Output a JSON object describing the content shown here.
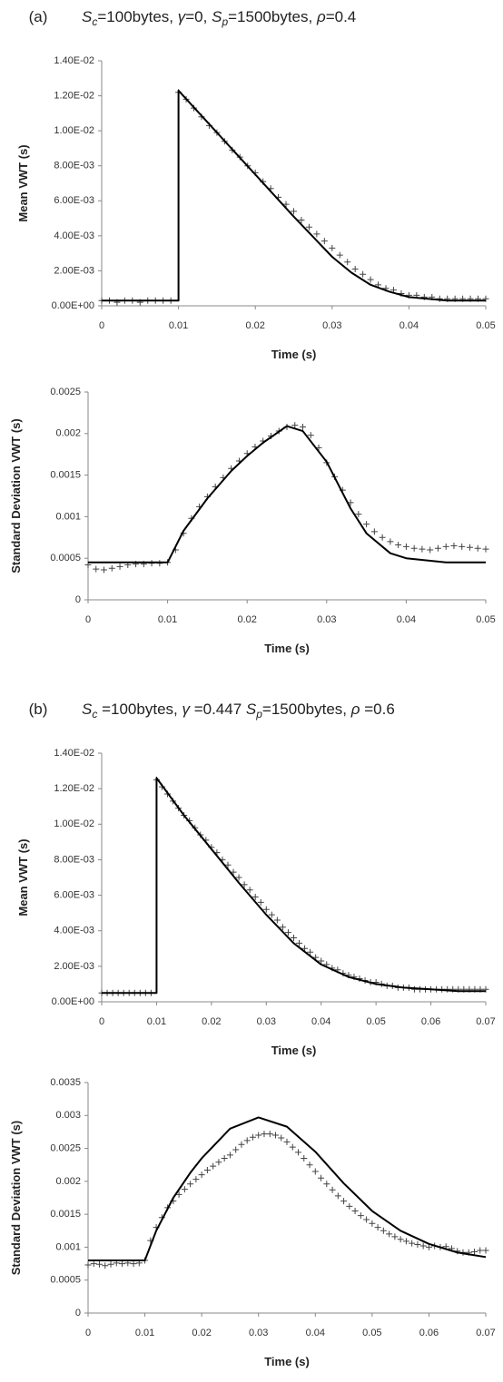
{
  "headings": [
    [
      "(a)",
      "S",
      "c",
      "=100bytes, ",
      "γ",
      "=0, ",
      "S",
      "p",
      "=1500bytes, ",
      "ρ",
      "=0.4"
    ],
    [
      "(b)",
      "S",
      "c",
      " =100bytes, ",
      "γ",
      " =0.447 ",
      "S",
      "p",
      "=1500bytes, ",
      "ρ",
      " =0.6"
    ]
  ],
  "chart_data": [
    {
      "type": "line",
      "y_label": "Mean VWT (s)",
      "x_label": "Time (s)",
      "xlim": [
        0,
        0.05
      ],
      "xticks": [
        0,
        0.01,
        0.02,
        0.03,
        0.04,
        0.05
      ],
      "ylim": [
        0,
        0.014
      ],
      "yticks": [
        {
          "value": 0,
          "label": "0.00E+00"
        },
        {
          "value": 0.002,
          "label": "2.00E-03"
        },
        {
          "value": 0.004,
          "label": "4.00E-03"
        },
        {
          "value": 0.006,
          "label": "6.00E-03"
        },
        {
          "value": 0.008,
          "label": "8.00E-03"
        },
        {
          "value": 0.01,
          "label": "1.00E-02"
        },
        {
          "value": 0.012,
          "label": "1.20E-02"
        },
        {
          "value": 0.014,
          "label": "1.40E-02"
        }
      ],
      "series": [
        {
          "color": "#444444",
          "marker": "+",
          "x": [
            0,
            0.001,
            0.002,
            0.003,
            0.004,
            0.005,
            0.006,
            0.007,
            0.008,
            0.009,
            0.01,
            0.011,
            0.012,
            0.013,
            0.014,
            0.015,
            0.016,
            0.017,
            0.018,
            0.019,
            0.02,
            0.021,
            0.022,
            0.023,
            0.024,
            0.025,
            0.026,
            0.027,
            0.028,
            0.029,
            0.03,
            0.031,
            0.032,
            0.033,
            0.034,
            0.035,
            0.036,
            0.037,
            0.038,
            0.039,
            0.04,
            0.041,
            0.042,
            0.043,
            0.044,
            0.045,
            0.046,
            0.047,
            0.048,
            0.049,
            0.05
          ],
          "values": [
            0.0003,
            0.0003,
            0.0002,
            0.0003,
            0.0003,
            0.0002,
            0.0003,
            0.0003,
            0.0003,
            0.0003,
            0.0122,
            0.0118,
            0.0113,
            0.0108,
            0.0103,
            0.0099,
            0.0094,
            0.0089,
            0.0085,
            0.008,
            0.0076,
            0.0071,
            0.0067,
            0.0062,
            0.0058,
            0.0054,
            0.0049,
            0.0045,
            0.0041,
            0.0037,
            0.0033,
            0.0029,
            0.0025,
            0.0021,
            0.0018,
            0.0015,
            0.0012,
            0.001,
            0.0009,
            0.0007,
            0.0006,
            0.0006,
            0.0005,
            0.0005,
            0.0004,
            0.0004,
            0.0004,
            0.0004,
            0.0004,
            0.0004,
            0.0004
          ]
        },
        {
          "color": "#000000",
          "x": [
            0,
            0.01,
            0.01,
            0.015,
            0.02,
            0.025,
            0.03,
            0.0325,
            0.035,
            0.0375,
            0.04,
            0.045,
            0.05
          ],
          "values": [
            0.0003,
            0.0003,
            0.0123,
            0.0099,
            0.0075,
            0.0051,
            0.0028,
            0.0019,
            0.0012,
            0.0008,
            0.0005,
            0.0003,
            0.0003
          ]
        }
      ]
    },
    {
      "type": "line",
      "y_label": "Standard Deviation VWT (s)",
      "x_label": "Time (s)",
      "xlim": [
        0,
        0.05
      ],
      "xticks": [
        0,
        0.01,
        0.02,
        0.03,
        0.04,
        0.05
      ],
      "ylim": [
        0,
        0.0025
      ],
      "yticks": [
        0,
        0.0005,
        0.001,
        0.0015,
        0.002,
        0.0025
      ],
      "series": [
        {
          "color": "#444444",
          "marker": "+",
          "x": [
            0,
            0.001,
            0.002,
            0.003,
            0.004,
            0.005,
            0.006,
            0.007,
            0.008,
            0.009,
            0.01,
            0.011,
            0.012,
            0.013,
            0.014,
            0.015,
            0.016,
            0.017,
            0.018,
            0.019,
            0.02,
            0.021,
            0.022,
            0.023,
            0.024,
            0.025,
            0.026,
            0.027,
            0.028,
            0.029,
            0.03,
            0.031,
            0.032,
            0.033,
            0.034,
            0.035,
            0.036,
            0.037,
            0.038,
            0.039,
            0.04,
            0.041,
            0.042,
            0.043,
            0.044,
            0.045,
            0.046,
            0.047,
            0.048,
            0.049,
            0.05
          ],
          "values": [
            0.00042,
            0.00037,
            0.00036,
            0.00038,
            0.0004,
            0.00042,
            0.00043,
            0.00043,
            0.00044,
            0.00044,
            0.00045,
            0.0006,
            0.0008,
            0.00098,
            0.00112,
            0.00124,
            0.00136,
            0.00147,
            0.00158,
            0.00167,
            0.00176,
            0.00184,
            0.00191,
            0.00197,
            0.00203,
            0.00208,
            0.0021,
            0.00208,
            0.00198,
            0.00183,
            0.00165,
            0.00148,
            0.00132,
            0.00117,
            0.00103,
            0.00091,
            0.00082,
            0.00075,
            0.0007,
            0.00066,
            0.00064,
            0.00062,
            0.00061,
            0.0006,
            0.00062,
            0.00064,
            0.00065,
            0.00064,
            0.00063,
            0.00062,
            0.00061
          ]
        },
        {
          "color": "#000000",
          "x": [
            0,
            0.01,
            0.012,
            0.015,
            0.018,
            0.02,
            0.022,
            0.025,
            0.027,
            0.03,
            0.033,
            0.035,
            0.038,
            0.04,
            0.045,
            0.05
          ],
          "values": [
            0.00045,
            0.00045,
            0.00083,
            0.00122,
            0.00155,
            0.00173,
            0.00189,
            0.00209,
            0.00203,
            0.00166,
            0.0011,
            0.0008,
            0.00056,
            0.0005,
            0.00045,
            0.00045
          ]
        }
      ]
    },
    {
      "type": "line",
      "y_label": "Mean VWT (s)",
      "x_label": "Time (s)",
      "xlim": [
        0,
        0.07
      ],
      "xticks": [
        0,
        0.01,
        0.02,
        0.03,
        0.04,
        0.05,
        0.06,
        0.07
      ],
      "ylim": [
        0,
        0.014
      ],
      "yticks": [
        {
          "value": 0,
          "label": "0.00E+00"
        },
        {
          "value": 0.002,
          "label": "2.00E-03"
        },
        {
          "value": 0.004,
          "label": "4.00E-03"
        },
        {
          "value": 0.006,
          "label": "6.00E-03"
        },
        {
          "value": 0.008,
          "label": "8.00E-03"
        },
        {
          "value": 0.01,
          "label": "1.00E-02"
        },
        {
          "value": 0.012,
          "label": "1.20E-02"
        },
        {
          "value": 0.014,
          "label": "1.40E-02"
        }
      ],
      "series": [
        {
          "color": "#444444",
          "marker": "+",
          "x": [
            0,
            0.001,
            0.002,
            0.003,
            0.004,
            0.005,
            0.006,
            0.007,
            0.008,
            0.009,
            0.01,
            0.011,
            0.012,
            0.013,
            0.014,
            0.015,
            0.016,
            0.017,
            0.018,
            0.019,
            0.02,
            0.021,
            0.022,
            0.023,
            0.024,
            0.025,
            0.026,
            0.027,
            0.028,
            0.029,
            0.03,
            0.031,
            0.032,
            0.033,
            0.034,
            0.035,
            0.036,
            0.037,
            0.038,
            0.039,
            0.04,
            0.041,
            0.042,
            0.043,
            0.044,
            0.045,
            0.046,
            0.047,
            0.048,
            0.049,
            0.05,
            0.051,
            0.052,
            0.053,
            0.054,
            0.055,
            0.056,
            0.057,
            0.058,
            0.059,
            0.06,
            0.061,
            0.062,
            0.063,
            0.064,
            0.065,
            0.066,
            0.067,
            0.068,
            0.069,
            0.07
          ],
          "values": [
            0.0005,
            0.0005,
            0.0005,
            0.0005,
            0.0005,
            0.0005,
            0.0005,
            0.0005,
            0.0005,
            0.0005,
            0.0125,
            0.0121,
            0.0117,
            0.0113,
            0.0109,
            0.0105,
            0.0102,
            0.0098,
            0.0094,
            0.0091,
            0.0087,
            0.0084,
            0.008,
            0.0077,
            0.0073,
            0.007,
            0.0066,
            0.0063,
            0.0059,
            0.0056,
            0.0052,
            0.0049,
            0.0046,
            0.0042,
            0.0039,
            0.0036,
            0.0033,
            0.003,
            0.0028,
            0.0025,
            0.0023,
            0.0021,
            0.0019,
            0.0018,
            0.0016,
            0.0015,
            0.0014,
            0.0013,
            0.0012,
            0.0011,
            0.0011,
            0.001,
            0.0009,
            0.0009,
            0.0008,
            0.0008,
            0.0008,
            0.0007,
            0.0007,
            0.0007,
            0.0007,
            0.0007,
            0.0007,
            0.0007,
            0.0007,
            0.0007,
            0.0007,
            0.0007,
            0.0007,
            0.0007,
            0.0007
          ]
        },
        {
          "color": "#000000",
          "x": [
            0,
            0.01,
            0.01,
            0.015,
            0.02,
            0.025,
            0.03,
            0.035,
            0.04,
            0.045,
            0.05,
            0.055,
            0.06,
            0.065,
            0.07
          ],
          "values": [
            0.0005,
            0.0005,
            0.0126,
            0.0105,
            0.0086,
            0.0067,
            0.0049,
            0.0033,
            0.0021,
            0.0014,
            0.001,
            0.0008,
            0.0007,
            0.0006,
            0.0006
          ]
        }
      ]
    },
    {
      "type": "line",
      "y_label": "Standard Deviation VWT (s)",
      "x_label": "Time (s)",
      "xlim": [
        0,
        0.07
      ],
      "xticks": [
        0,
        0.01,
        0.02,
        0.03,
        0.04,
        0.05,
        0.06,
        0.07
      ],
      "ylim": [
        0,
        0.0035
      ],
      "yticks": [
        0,
        0.0005,
        0.001,
        0.0015,
        0.002,
        0.0025,
        0.003,
        0.0035
      ],
      "series": [
        {
          "color": "#444444",
          "marker": "+",
          "x": [
            0,
            0.001,
            0.002,
            0.003,
            0.004,
            0.005,
            0.006,
            0.007,
            0.008,
            0.009,
            0.01,
            0.011,
            0.012,
            0.013,
            0.014,
            0.015,
            0.016,
            0.017,
            0.018,
            0.019,
            0.02,
            0.021,
            0.022,
            0.023,
            0.024,
            0.025,
            0.026,
            0.027,
            0.028,
            0.029,
            0.03,
            0.031,
            0.032,
            0.033,
            0.034,
            0.035,
            0.036,
            0.037,
            0.038,
            0.039,
            0.04,
            0.041,
            0.042,
            0.043,
            0.044,
            0.045,
            0.046,
            0.047,
            0.048,
            0.049,
            0.05,
            0.051,
            0.052,
            0.053,
            0.054,
            0.055,
            0.056,
            0.057,
            0.058,
            0.059,
            0.06,
            0.061,
            0.062,
            0.063,
            0.064,
            0.065,
            0.066,
            0.067,
            0.068,
            0.069,
            0.07
          ],
          "values": [
            0.00073,
            0.00075,
            0.00074,
            0.00072,
            0.00074,
            0.00076,
            0.00075,
            0.00076,
            0.00075,
            0.00076,
            0.0008,
            0.0011,
            0.0013,
            0.00145,
            0.0016,
            0.0017,
            0.0018,
            0.00188,
            0.00196,
            0.00203,
            0.0021,
            0.00217,
            0.00223,
            0.00229,
            0.00235,
            0.0024,
            0.00248,
            0.00256,
            0.00262,
            0.00267,
            0.0027,
            0.00272,
            0.00272,
            0.0027,
            0.00266,
            0.0026,
            0.00252,
            0.00244,
            0.00235,
            0.00225,
            0.00215,
            0.00205,
            0.00196,
            0.00187,
            0.00178,
            0.0017,
            0.00162,
            0.00155,
            0.00148,
            0.00142,
            0.00136,
            0.0013,
            0.00125,
            0.0012,
            0.00116,
            0.00112,
            0.00109,
            0.00106,
            0.00104,
            0.00102,
            0.001,
            0.00102,
            0.001,
            0.00101,
            0.00098,
            0.00094,
            0.00092,
            0.00092,
            0.00093,
            0.00095,
            0.00095
          ]
        },
        {
          "color": "#000000",
          "x": [
            0,
            0.01,
            0.012,
            0.015,
            0.018,
            0.02,
            0.025,
            0.03,
            0.035,
            0.04,
            0.045,
            0.05,
            0.055,
            0.06,
            0.065,
            0.07
          ],
          "values": [
            0.0008,
            0.0008,
            0.00125,
            0.00175,
            0.00213,
            0.00235,
            0.0028,
            0.00297,
            0.00283,
            0.00245,
            0.00197,
            0.00155,
            0.00125,
            0.00105,
            0.00092,
            0.00085
          ]
        }
      ]
    }
  ]
}
